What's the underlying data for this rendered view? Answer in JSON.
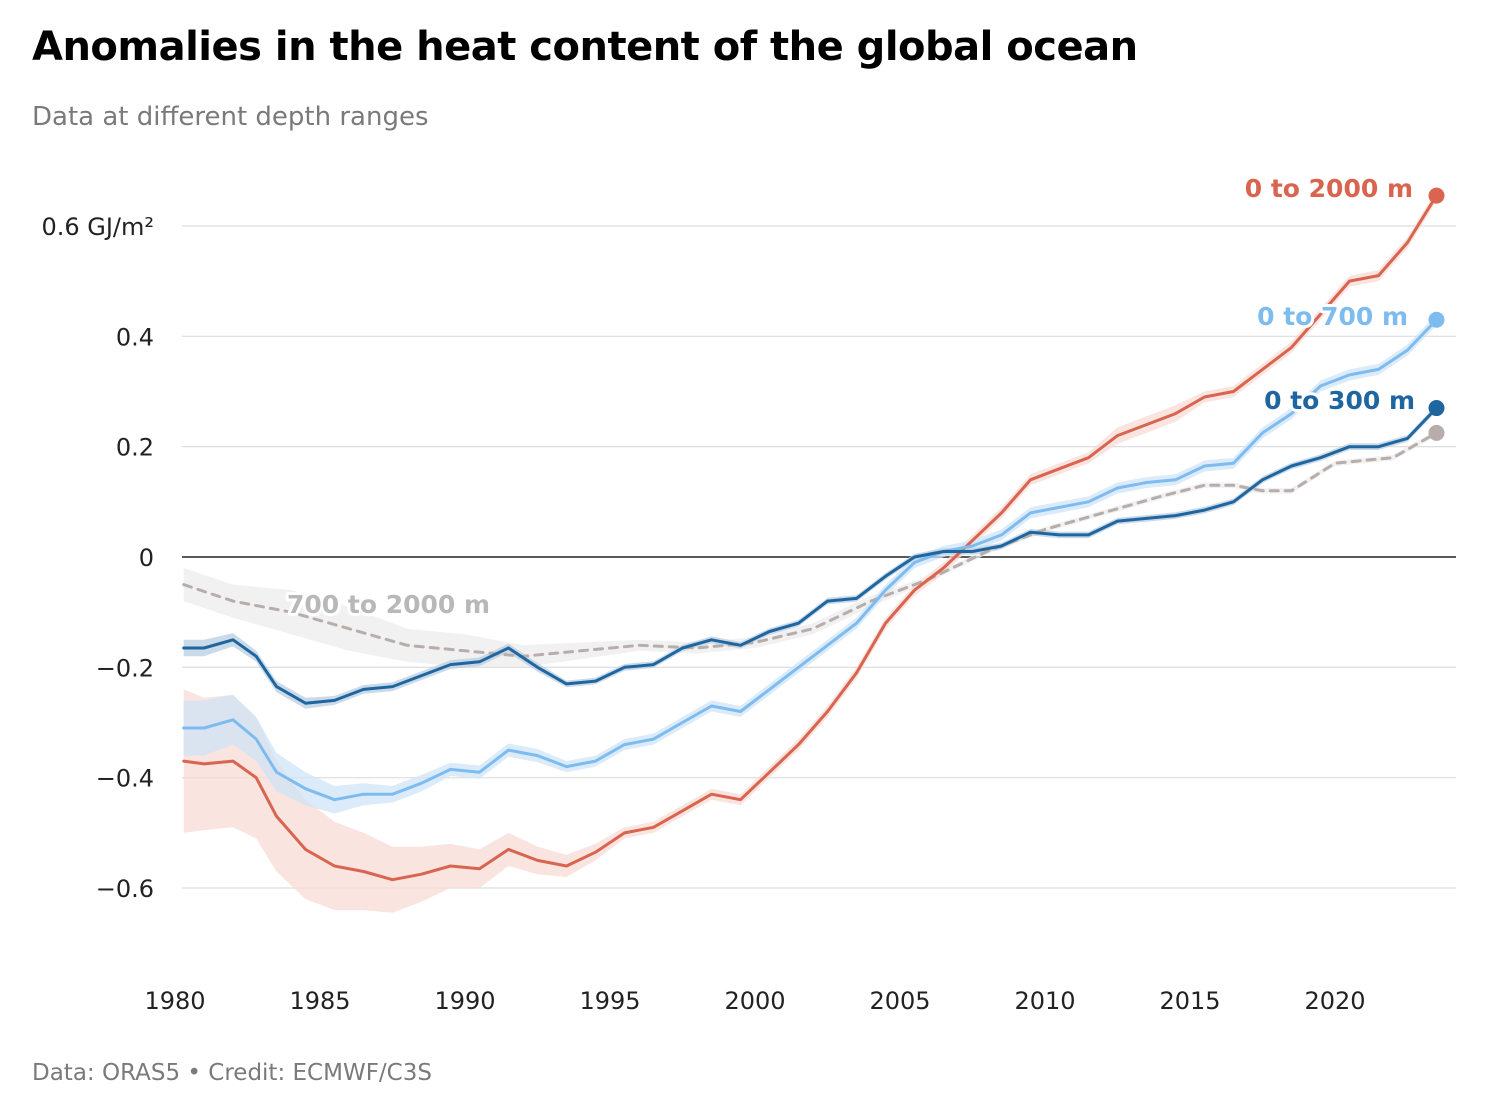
{
  "header": {
    "title": "Anomalies in the heat content of the global ocean",
    "subtitle": "Data at different depth ranges"
  },
  "footer": {
    "text": "Data: ORAS5 • Credit: ECMWF/C3S"
  },
  "chart_data": {
    "type": "line",
    "title": "Anomalies in the heat content of the global ocean",
    "subtitle": "Data at different depth ranges",
    "ylabel": "GJ/m²",
    "ylim": [
      -0.75,
      0.7
    ],
    "xlim": [
      1980,
      2024.5
    ],
    "y_ticks": [
      {
        "value": 0.6,
        "label": "0.6 GJ/m²"
      },
      {
        "value": 0.4,
        "label": "0.4"
      },
      {
        "value": 0.2,
        "label": "0.2"
      },
      {
        "value": 0,
        "label": "0"
      },
      {
        "value": -0.2,
        "label": "−0.2"
      },
      {
        "value": -0.4,
        "label": "−0.4"
      },
      {
        "value": -0.6,
        "label": "−0.6"
      }
    ],
    "x_ticks": [
      {
        "value": 1980,
        "label": "1980"
      },
      {
        "value": 1985,
        "label": "1985"
      },
      {
        "value": 1990,
        "label": "1990"
      },
      {
        "value": 1995,
        "label": "1995"
      },
      {
        "value": 2000,
        "label": "2000"
      },
      {
        "value": 2005,
        "label": "2005"
      },
      {
        "value": 2010,
        "label": "2010"
      },
      {
        "value": 2015,
        "label": "2015"
      },
      {
        "value": 2020,
        "label": "2020"
      }
    ],
    "grid": true,
    "legend": "direct labels at line ends",
    "series": [
      {
        "name": "700 to 2000 m",
        "color": "#b7aeab",
        "style": "dashed",
        "band_color": "#ececec",
        "x": [
          1980.3,
          1982,
          1984,
          1986,
          1988,
          1990,
          1992,
          1994,
          1996,
          1998,
          2000,
          2002,
          2004,
          2006,
          2008,
          2010,
          2012,
          2014,
          2015.5,
          2016.5,
          2017.5,
          2018.5,
          2020,
          2022,
          2023.5
        ],
        "y": [
          -0.05,
          -0.08,
          -0.1,
          -0.13,
          -0.16,
          -0.17,
          -0.18,
          -0.17,
          -0.16,
          -0.165,
          -0.155,
          -0.13,
          -0.08,
          -0.04,
          0.01,
          0.05,
          0.08,
          0.11,
          0.13,
          0.13,
          0.12,
          0.12,
          0.17,
          0.18,
          0.225
        ],
        "band": [
          0.03,
          0.03,
          0.04,
          0.04,
          0.03,
          0.03,
          0.02,
          0.015,
          0.01,
          0.01,
          0.01,
          0.01,
          0.01,
          0.005,
          0.005,
          0.005,
          0.005,
          0.005,
          0.005,
          0.005,
          0.005,
          0.005,
          0.005,
          0.005,
          0.005
        ]
      },
      {
        "name": "0 to 2000 m",
        "color": "#d9644f",
        "style": "solid",
        "band_color": "#f7dbd5",
        "x": [
          1980.3,
          1981,
          1982,
          1982.8,
          1983.5,
          1984.5,
          1985.5,
          1986.5,
          1987.5,
          1988.5,
          1989.5,
          1990.5,
          1991.5,
          1992.5,
          1993.5,
          1994.5,
          1995.5,
          1996.5,
          1997.5,
          1998.5,
          1999.5,
          2000.5,
          2001.5,
          2002.5,
          2003.5,
          2004.5,
          2005.5,
          2006.5,
          2007.5,
          2008.5,
          2009.5,
          2010.5,
          2011.5,
          2012.5,
          2013.5,
          2014.5,
          2015.5,
          2016.5,
          2017.5,
          2018.5,
          2019.5,
          2020.5,
          2021.5,
          2022.5,
          2023.5
        ],
        "y": [
          -0.37,
          -0.375,
          -0.37,
          -0.4,
          -0.47,
          -0.53,
          -0.56,
          -0.57,
          -0.585,
          -0.575,
          -0.56,
          -0.565,
          -0.53,
          -0.55,
          -0.56,
          -0.535,
          -0.5,
          -0.49,
          -0.46,
          -0.43,
          -0.44,
          -0.39,
          -0.34,
          -0.28,
          -0.21,
          -0.12,
          -0.06,
          -0.02,
          0.03,
          0.08,
          0.14,
          0.16,
          0.18,
          0.22,
          0.24,
          0.26,
          0.29,
          0.3,
          0.34,
          0.38,
          0.44,
          0.5,
          0.51,
          0.57,
          0.655
        ],
        "band": [
          0.13,
          0.12,
          0.12,
          0.11,
          0.1,
          0.09,
          0.08,
          0.07,
          0.06,
          0.05,
          0.04,
          0.035,
          0.03,
          0.025,
          0.02,
          0.015,
          0.01,
          0.01,
          0.01,
          0.01,
          0.01,
          0.01,
          0.01,
          0.01,
          0.01,
          0.01,
          0.01,
          0.01,
          0.01,
          0.01,
          0.01,
          0.01,
          0.01,
          0.015,
          0.015,
          0.015,
          0.01,
          0.01,
          0.01,
          0.01,
          0.01,
          0.01,
          0.01,
          0.01,
          0.01
        ]
      },
      {
        "name": "0 to 700 m",
        "color": "#7ebcef",
        "style": "solid",
        "band_color": "#cfe4f7",
        "x": [
          1980.3,
          1981,
          1982,
          1982.8,
          1983.5,
          1984.5,
          1985.5,
          1986.5,
          1987.5,
          1988.5,
          1989.5,
          1990.5,
          1991.5,
          1992.5,
          1993.5,
          1994.5,
          1995.5,
          1996.5,
          1997.5,
          1998.5,
          1999.5,
          2000.5,
          2001.5,
          2002.5,
          2003.5,
          2004.5,
          2005.5,
          2006.5,
          2007.5,
          2008.5,
          2009.5,
          2010.5,
          2011.5,
          2012.5,
          2013.5,
          2014.5,
          2015.5,
          2016.5,
          2017.5,
          2018.5,
          2019.5,
          2020.5,
          2021.5,
          2022.5,
          2023.5
        ],
        "y": [
          -0.31,
          -0.31,
          -0.295,
          -0.33,
          -0.39,
          -0.42,
          -0.44,
          -0.43,
          -0.43,
          -0.41,
          -0.385,
          -0.39,
          -0.35,
          -0.36,
          -0.38,
          -0.37,
          -0.34,
          -0.33,
          -0.3,
          -0.27,
          -0.28,
          -0.24,
          -0.2,
          -0.16,
          -0.12,
          -0.06,
          -0.01,
          0.01,
          0.02,
          0.04,
          0.08,
          0.09,
          0.1,
          0.125,
          0.135,
          0.14,
          0.165,
          0.17,
          0.225,
          0.26,
          0.31,
          0.33,
          0.34,
          0.375,
          0.43
        ],
        "band": [
          0.05,
          0.05,
          0.045,
          0.04,
          0.035,
          0.03,
          0.025,
          0.02,
          0.015,
          0.015,
          0.012,
          0.012,
          0.012,
          0.012,
          0.01,
          0.01,
          0.01,
          0.01,
          0.01,
          0.01,
          0.01,
          0.01,
          0.01,
          0.01,
          0.01,
          0.01,
          0.01,
          0.01,
          0.01,
          0.01,
          0.01,
          0.01,
          0.01,
          0.01,
          0.01,
          0.01,
          0.01,
          0.01,
          0.01,
          0.01,
          0.01,
          0.01,
          0.01,
          0.01,
          0.01
        ]
      },
      {
        "name": "0 to 300 m",
        "color": "#1f66a0",
        "style": "solid",
        "band_color": "#b9cde0",
        "x": [
          1980.3,
          1981,
          1982,
          1982.8,
          1983.5,
          1984.5,
          1985.5,
          1986.5,
          1987.5,
          1988.5,
          1989.5,
          1990.5,
          1991.5,
          1992.5,
          1993.5,
          1994.5,
          1995.5,
          1996.5,
          1997.5,
          1998.5,
          1999.5,
          2000.5,
          2001.5,
          2002.5,
          2003.5,
          2004.5,
          2005.5,
          2006.5,
          2007.5,
          2008.5,
          2009.5,
          2010.5,
          2011.5,
          2012.5,
          2013.5,
          2014.5,
          2015.5,
          2016.5,
          2017.5,
          2018.5,
          2019.5,
          2020.5,
          2021.5,
          2022.5,
          2023.5
        ],
        "y": [
          -0.165,
          -0.165,
          -0.15,
          -0.18,
          -0.235,
          -0.265,
          -0.26,
          -0.24,
          -0.235,
          -0.215,
          -0.195,
          -0.19,
          -0.165,
          -0.2,
          -0.23,
          -0.225,
          -0.2,
          -0.195,
          -0.165,
          -0.15,
          -0.16,
          -0.135,
          -0.12,
          -0.08,
          -0.075,
          -0.035,
          0.0,
          0.01,
          0.01,
          0.02,
          0.045,
          0.04,
          0.04,
          0.065,
          0.07,
          0.075,
          0.085,
          0.1,
          0.14,
          0.165,
          0.18,
          0.2,
          0.2,
          0.215,
          0.27
        ],
        "band": [
          0.015,
          0.015,
          0.012,
          0.01,
          0.01,
          0.01,
          0.008,
          0.008,
          0.008,
          0.008,
          0.008,
          0.008,
          0.008,
          0.008,
          0.006,
          0.006,
          0.006,
          0.006,
          0.006,
          0.006,
          0.006,
          0.006,
          0.006,
          0.006,
          0.006,
          0.006,
          0.006,
          0.006,
          0.006,
          0.006,
          0.006,
          0.006,
          0.006,
          0.006,
          0.006,
          0.006,
          0.006,
          0.006,
          0.006,
          0.006,
          0.006,
          0.006,
          0.006,
          0.006,
          0.006
        ]
      }
    ]
  }
}
